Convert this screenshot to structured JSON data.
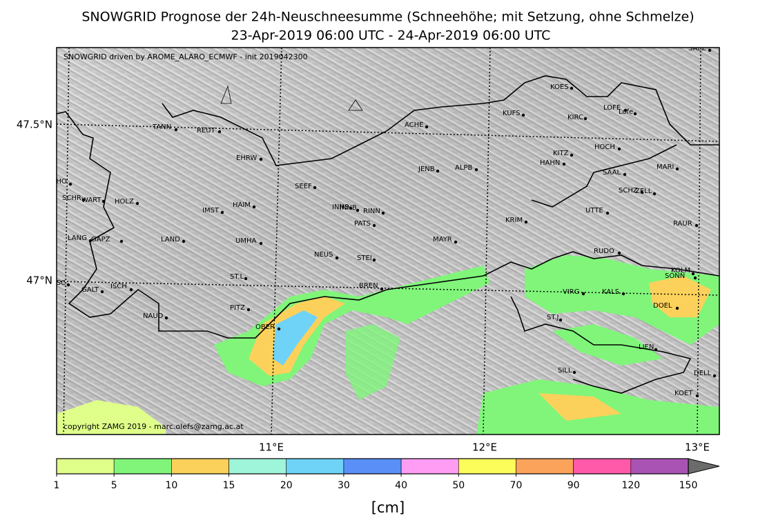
{
  "title": [
    "SNOWGRID Prognose der 24h-Neuschneesumme (Schneehöhe; mit Setzung, ohne Schmelze)",
    "23-Apr-2019 06:00 UTC - 24-Apr-2019 06:00 UTC"
  ],
  "annotations": {
    "model": "SNOWGRID driven by AROME_ALARO_ECMWF - init 2019042300",
    "copyright": "copyright ZAMG 2019 - marc.olefs@zamg.ac.at"
  },
  "map": {
    "lon_labels": [
      "11°E",
      "12°E",
      "13°E"
    ],
    "lat_labels": [
      "47.5°N",
      "47°N"
    ],
    "stations": [
      "SALZ",
      "KOES",
      "KUFS",
      "LOFE",
      "Lofe",
      "KIRC",
      "ACHE",
      "TANN",
      "REUT",
      "HOCH",
      "KITZ",
      "HAHN",
      "EHRW",
      "JENB",
      "ALPB",
      "MARI",
      "SAAL",
      "SCHO",
      "SEEF",
      "SCHZ",
      "ZELL",
      "SCHR",
      "WART",
      "HOLZ",
      "HAIM",
      "INNS",
      "INNB",
      "RINN",
      "IMST",
      "UTTE",
      "KRIM",
      "PATS",
      "RAUR",
      "LANG",
      "GAPZ",
      "LAND",
      "UMHA",
      "MAYR",
      "NEUS",
      "STEI",
      "RUDO",
      "KOLM",
      "SONN",
      "ST.L",
      "GASC",
      "ISCH",
      "BREN",
      "GALT",
      "VIRG",
      "KALS",
      "DOEL",
      "PITZ",
      "NAUD",
      "ST.J",
      "OBER",
      "LIEN",
      "SILL",
      "DELL",
      "KOET"
    ]
  },
  "colorbar": {
    "ticks": [
      1,
      5,
      10,
      15,
      20,
      30,
      40,
      50,
      70,
      90,
      120,
      150
    ],
    "colors": [
      "#dfff8a",
      "#80f57a",
      "#fcd15b",
      "#9ff5d9",
      "#6ed3f7",
      "#5a8ff7",
      "#ff9cf3",
      "#fcfd5a",
      "#fba35b",
      "#ff5aaa",
      "#a954b5"
    ],
    "over_color": "#6b6b6b",
    "label": "[cm]"
  }
}
